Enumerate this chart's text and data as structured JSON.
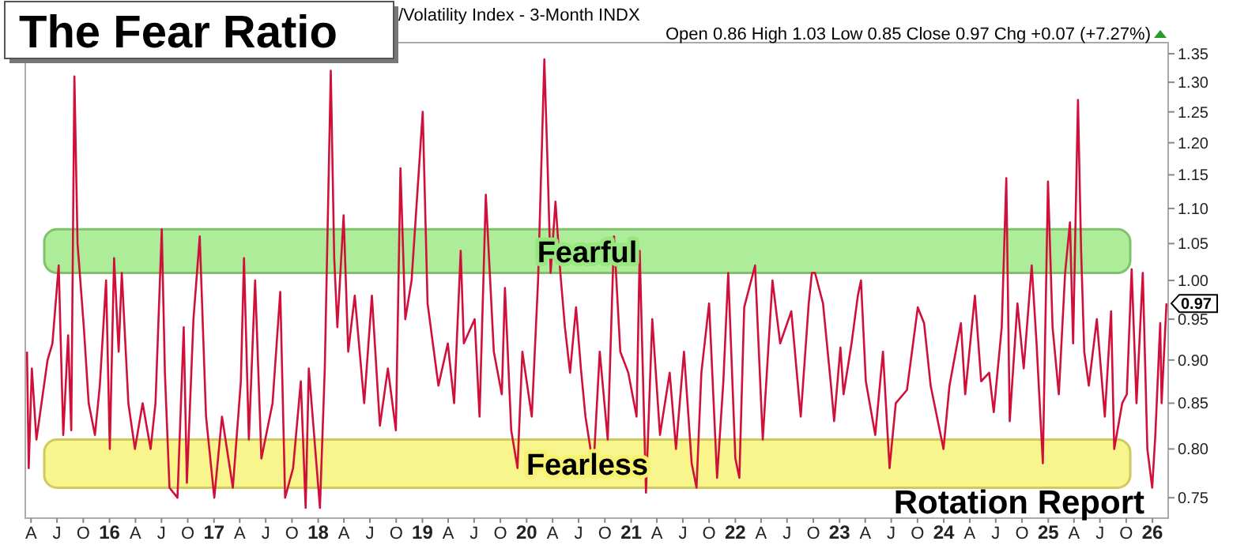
{
  "chart_data": {
    "type": "line",
    "title": "The Fear Ratio",
    "subtitle": "/Volatility Index - 3-Month INDX",
    "log": true,
    "xlim": [
      "2015-03-12",
      "2026-02-25"
    ],
    "ylim": [
      0.73,
      1.37
    ],
    "yticks": [
      0.75,
      {
        "value": 0.8,
        "label": "0.80"
      },
      0.85,
      {
        "value": 0.9,
        "label": "0.90"
      },
      0.95,
      {
        "value": 1,
        "label": "1.00"
      },
      1.05,
      {
        "value": 1.1,
        "label": "1.10"
      },
      1.15,
      {
        "value": 1.2,
        "label": "1.20"
      },
      1.25,
      {
        "value": 1.3,
        "label": "1.30"
      },
      1.35
    ],
    "xticks": [
      {
        "value": "2015-04",
        "label": "A"
      },
      {
        "value": "2015-07",
        "label": "J"
      },
      {
        "value": "2015-10",
        "label": "O"
      },
      {
        "value": "2016-01",
        "label": "16"
      },
      {
        "value": "2016-04",
        "label": "A"
      },
      {
        "value": "2016-07",
        "label": "J"
      },
      {
        "value": "2016-10",
        "label": "O"
      },
      {
        "value": "2017-01",
        "label": "17"
      },
      {
        "value": "2017-04",
        "label": "A"
      },
      {
        "value": "2017-07",
        "label": "J"
      },
      {
        "value": "2017-10",
        "label": "O"
      },
      {
        "value": "2018-01",
        "label": "18"
      },
      {
        "value": "2018-04",
        "label": "A"
      },
      {
        "value": "2018-07",
        "label": "J"
      },
      {
        "value": "2018-10",
        "label": "O"
      },
      {
        "value": "2019-01",
        "label": "19"
      },
      {
        "value": "2019-04",
        "label": "A"
      },
      {
        "value": "2019-07",
        "label": "J"
      },
      {
        "value": "2019-10",
        "label": "O"
      },
      {
        "value": "2020-01",
        "label": "20"
      },
      {
        "value": "2020-04",
        "label": "A"
      },
      {
        "value": "2020-07",
        "label": "J"
      },
      {
        "value": "2020-10",
        "label": "O"
      },
      {
        "value": "2021-01",
        "label": "21"
      },
      {
        "value": "2021-04",
        "label": "A"
      },
      {
        "value": "2021-07",
        "label": "J"
      },
      {
        "value": "2021-10",
        "label": "O"
      },
      {
        "value": "2022-01",
        "label": "22"
      },
      {
        "value": "2022-04",
        "label": "A"
      },
      {
        "value": "2022-07",
        "label": "J"
      },
      {
        "value": "2022-10",
        "label": "O"
      },
      {
        "value": "2023-01",
        "label": "23"
      },
      {
        "value": "2023-04",
        "label": "A"
      },
      {
        "value": "2023-07",
        "label": "J"
      },
      {
        "value": "2023-10",
        "label": "O"
      },
      {
        "value": "2024-01",
        "label": "24"
      },
      {
        "value": "2024-04",
        "label": "A"
      },
      {
        "value": "2024-07",
        "label": "J"
      },
      {
        "value": "2024-10",
        "label": "O"
      },
      {
        "value": "2025-01",
        "label": "25"
      },
      {
        "value": "2025-04",
        "label": "A"
      },
      {
        "value": "2025-07",
        "label": "J"
      },
      {
        "value": "2025-10",
        "label": "O"
      },
      {
        "value": "2026-01",
        "label": "26"
      }
    ],
    "x": [
      "2015-03-18",
      "2015-03-24",
      "2015-04-04",
      "2015-04-20",
      "2015-05-29",
      "2015-06-15",
      "2015-07-07",
      "2015-07-23",
      "2015-08-09",
      "2015-08-20",
      "2015-08-31",
      "2015-09-11",
      "2015-10-03",
      "2015-10-20",
      "2015-11-11",
      "2015-11-28",
      "2015-12-20",
      "2016-01-02",
      "2016-01-17",
      "2016-02-02",
      "2016-02-13",
      "2016-03-07",
      "2016-03-30",
      "2016-04-26",
      "2016-05-24",
      "2016-06-10",
      "2016-07-02",
      "2016-07-13",
      "2016-07-29",
      "2016-08-26",
      "2016-09-17",
      "2016-09-28",
      "2016-10-21",
      "2016-11-12",
      "2016-12-04",
      "2017-01-02",
      "2017-01-29",
      "2017-03-08",
      "2017-04-05",
      "2017-04-16",
      "2017-05-03",
      "2017-05-25",
      "2017-06-16",
      "2017-07-25",
      "2017-08-21",
      "2017-09-07",
      "2017-10-05",
      "2017-11-01",
      "2017-11-18",
      "2017-11-29",
      "2018-01-07",
      "2018-01-24",
      "2018-02-14",
      "2018-02-26",
      "2018-03-09",
      "2018-03-31",
      "2018-04-16",
      "2018-05-09",
      "2018-06-11",
      "2018-07-08",
      "2018-08-05",
      "2018-09-02",
      "2018-09-30",
      "2018-10-16",
      "2018-11-02",
      "2018-11-24",
      "2019-01-02",
      "2019-01-19",
      "2019-02-26",
      "2019-03-31",
      "2019-04-22",
      "2019-05-15",
      "2019-05-26",
      "2019-07-03",
      "2019-07-20",
      "2019-08-11",
      "2019-09-08",
      "2019-10-06",
      "2019-10-17",
      "2019-11-08",
      "2019-11-30",
      "2019-12-17",
      "2020-01-19",
      "2020-02-10",
      "2020-03-03",
      "2020-03-14",
      "2020-03-25",
      "2020-04-11",
      "2020-04-28",
      "2020-05-14",
      "2020-06-01",
      "2020-06-22",
      "2020-07-09",
      "2020-07-25",
      "2020-08-22",
      "2020-09-13",
      "2020-10-11",
      "2020-11-02",
      "2020-11-24",
      "2020-12-22",
      "2021-01-20",
      "2021-01-31",
      "2021-02-22",
      "2021-03-16",
      "2021-04-12",
      "2021-05-16",
      "2021-06-07",
      "2021-07-05",
      "2021-08-01",
      "2021-08-18",
      "2021-09-04",
      "2021-10-01",
      "2021-10-29",
      "2021-11-20",
      "2021-12-07",
      "2022-01-01",
      "2022-01-15",
      "2022-02-01",
      "2022-03-11",
      "2022-04-07",
      "2022-05-11",
      "2022-06-07",
      "2022-07-16",
      "2022-08-18",
      "2022-09-15",
      "2022-09-26",
      "2022-10-07",
      "2022-11-04",
      "2022-12-02",
      "2022-12-13",
      "2023-01-04",
      "2023-01-15",
      "2023-02-12",
      "2023-03-06",
      "2023-03-17",
      "2023-04-03",
      "2023-05-06",
      "2023-06-02",
      "2023-06-25",
      "2023-07-17",
      "2023-08-25",
      "2023-10-02",
      "2023-10-24",
      "2023-11-16",
      "2023-12-31",
      "2024-01-21",
      "2024-03-01",
      "2024-03-16",
      "2024-04-19",
      "2024-05-11",
      "2024-06-08",
      "2024-06-24",
      "2024-07-22",
      "2024-08-07",
      "2024-08-19",
      "2024-09-15",
      "2024-10-07",
      "2024-11-04",
      "2024-11-21",
      "2024-12-13",
      "2024-12-31",
      "2025-01-16",
      "2025-02-07",
      "2025-03-01",
      "2025-03-18",
      "2025-03-29",
      "2025-04-15",
      "2025-04-26",
      "2025-05-07",
      "2025-05-23",
      "2025-06-20",
      "2025-07-18",
      "2025-08-09",
      "2025-08-20",
      "2025-09-17",
      "2025-10-03",
      "2025-10-20",
      "2025-11-06",
      "2025-11-28",
      "2025-12-14",
      "2025-12-31",
      "2026-01-11",
      "2026-01-28",
      "2026-02-02",
      "2026-02-19"
    ],
    "series": [
      {
        "color": "#d0103a",
        "values": [
          0.91,
          0.78,
          0.89,
          0.81,
          0.9,
          0.92,
          1.02,
          0.815,
          0.93,
          0.82,
          1.31,
          1.05,
          0.94,
          0.85,
          0.815,
          0.87,
          1.0,
          0.8,
          1.03,
          0.91,
          1.01,
          0.85,
          0.8,
          0.85,
          0.8,
          0.85,
          1.07,
          0.885,
          0.76,
          0.75,
          0.94,
          0.765,
          0.95,
          1.06,
          0.835,
          0.75,
          0.835,
          0.76,
          0.875,
          1.03,
          0.81,
          1.0,
          0.79,
          0.85,
          0.985,
          0.75,
          0.78,
          0.875,
          0.74,
          0.89,
          0.74,
          0.89,
          1.32,
          1.03,
          0.94,
          1.09,
          0.91,
          0.98,
          0.85,
          0.98,
          0.825,
          0.89,
          0.82,
          1.16,
          0.95,
          1.0,
          1.25,
          0.97,
          0.87,
          0.92,
          0.85,
          1.04,
          0.92,
          0.95,
          0.835,
          1.12,
          0.91,
          0.86,
          0.99,
          0.82,
          0.78,
          0.91,
          0.835,
          1.0,
          1.34,
          1.17,
          1.01,
          1.11,
          1.01,
          0.94,
          0.885,
          0.965,
          0.89,
          0.835,
          0.78,
          0.91,
          0.81,
          1.06,
          0.91,
          0.885,
          0.835,
          1.04,
          0.755,
          0.95,
          0.815,
          0.885,
          0.8,
          0.91,
          0.785,
          0.76,
          0.885,
          0.97,
          0.77,
          0.875,
          1.01,
          0.79,
          0.77,
          0.965,
          1.02,
          0.81,
          1.0,
          0.92,
          0.96,
          0.835,
          0.97,
          1.01,
          1.01,
          0.97,
          0.87,
          0.83,
          0.915,
          0.86,
          0.92,
          0.98,
          1.0,
          0.875,
          0.815,
          0.91,
          0.78,
          0.85,
          0.865,
          0.965,
          0.945,
          0.87,
          0.8,
          0.87,
          0.945,
          0.86,
          0.98,
          0.875,
          0.885,
          0.84,
          0.94,
          1.145,
          0.83,
          0.97,
          0.89,
          1.02,
          0.92,
          0.785,
          1.14,
          0.94,
          0.86,
          1.01,
          1.08,
          0.92,
          1.27,
          1.04,
          0.91,
          0.87,
          0.95,
          0.835,
          0.96,
          0.8,
          0.85,
          0.86,
          1.015,
          0.85,
          1.01,
          0.8,
          0.76,
          0.815,
          0.945,
          0.85,
          0.97
        ]
      }
    ],
    "bands": [
      {
        "axis": "y",
        "from": 1.01,
        "to": 1.07,
        "label": "Fearful",
        "color": "#98e880"
      },
      {
        "axis": "y",
        "from": 0.76,
        "to": 0.81,
        "label": "Fearless",
        "color": "#f6f270"
      }
    ],
    "annotations": [
      "Open 0.86 High 1.03 Low 0.85 Close 0.97 Chg +0.07 (+7.27%)",
      "Rotation Report",
      {
        "text": "0.97",
        "x": "2026-02-19",
        "y": 0.97
      }
    ]
  }
}
